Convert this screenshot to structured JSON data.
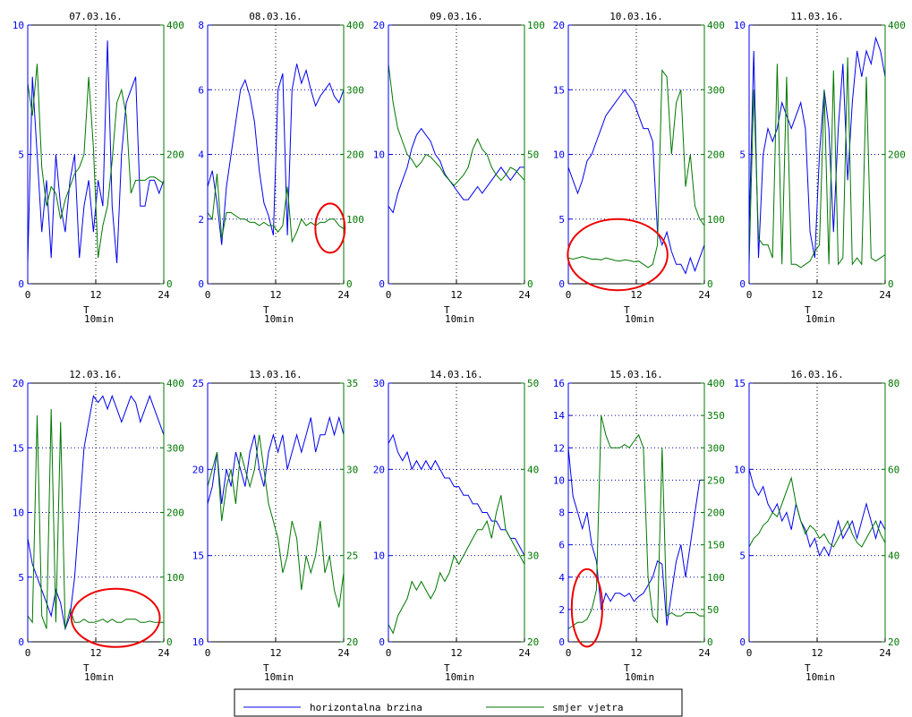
{
  "colors": {
    "speed": "#0000ee",
    "direction": "#007700",
    "grid": "#0000aa",
    "axis": "#000000",
    "highlight": "#ee0000"
  },
  "legend": {
    "speed_label": "horizontalna brzina",
    "direction_label": "smjer vjetra"
  },
  "chart_data": [
    {
      "type": "line",
      "title": "07.03.16.",
      "xlabel": "T",
      "xlabel_sub": "10min",
      "x_ticks": [
        "0",
        "12",
        "24"
      ],
      "left_ticks": [
        "0",
        "5",
        "10"
      ],
      "right_ticks": [
        "0",
        "200",
        "400"
      ],
      "left_ylim": [
        0,
        10
      ],
      "right_ylim": [
        0,
        400
      ],
      "grid": true,
      "highlight": null,
      "series": [
        {
          "axis": "left",
          "values": [
            0.8,
            8,
            5,
            2,
            4,
            1,
            5,
            3,
            2,
            4,
            5,
            1,
            3,
            4,
            2,
            4,
            3,
            9.4,
            3,
            0.8,
            5,
            7,
            7.5,
            8,
            3,
            3,
            4,
            4,
            3.5,
            4
          ]
        },
        {
          "axis": "right",
          "values": [
            310,
            260,
            340,
            180,
            120,
            150,
            140,
            100,
            130,
            150,
            170,
            180,
            200,
            320,
            210,
            40,
            90,
            120,
            190,
            280,
            300,
            260,
            140,
            160,
            160,
            160,
            165,
            165,
            160,
            155
          ]
        }
      ]
    },
    {
      "type": "line",
      "title": "08.03.16.",
      "xlabel": "T",
      "xlabel_sub": "10min",
      "x_ticks": [
        "0",
        "12",
        "24"
      ],
      "left_ticks": [
        "0",
        "2",
        "4",
        "6",
        "8"
      ],
      "right_ticks": [
        "0",
        "100",
        "200",
        "300",
        "400"
      ],
      "left_ylim": [
        0,
        8
      ],
      "right_ylim": [
        0,
        400
      ],
      "grid": true,
      "highlight": {
        "x": 21.6,
        "y": 86,
        "rx": 2.6,
        "ry": 38,
        "axis": "right"
      },
      "series": [
        {
          "axis": "left",
          "values": [
            3,
            3.5,
            2.5,
            1.2,
            3,
            4,
            5,
            6,
            6.3,
            5.8,
            5,
            3.5,
            2.5,
            2.1,
            1.5,
            6,
            6.5,
            1.5,
            6,
            6.8,
            6.2,
            6.6,
            6,
            5.5,
            5.8,
            6,
            6.2,
            5.8,
            5.6,
            6
          ]
        },
        {
          "axis": "right",
          "values": [
            110,
            100,
            170,
            70,
            110,
            110,
            105,
            100,
            100,
            95,
            95,
            90,
            95,
            90,
            90,
            80,
            90,
            150,
            65,
            80,
            100,
            90,
            95,
            90,
            95,
            95,
            100,
            100,
            90,
            85
          ]
        }
      ]
    },
    {
      "type": "line",
      "title": "09.03.16.",
      "xlabel": "T",
      "xlabel_sub": "10min",
      "x_ticks": [
        "0",
        "12",
        "24"
      ],
      "left_ticks": [
        "0",
        "10",
        "20"
      ],
      "right_ticks": [
        "0",
        "50",
        "100"
      ],
      "left_ylim": [
        0,
        20
      ],
      "right_ylim": [
        0,
        100
      ],
      "grid": true,
      "highlight": null,
      "series": [
        {
          "axis": "left",
          "values": [
            6,
            5.5,
            7,
            8,
            9,
            10.5,
            11.5,
            12,
            11.5,
            11,
            10,
            9.5,
            8.5,
            8,
            7.5,
            7,
            6.5,
            6.5,
            7,
            7.5,
            7,
            7.5,
            8,
            8.5,
            9,
            8.5,
            8,
            8.5,
            9,
            9
          ]
        },
        {
          "axis": "right",
          "values": [
            85,
            70,
            60,
            55,
            50,
            48,
            45,
            47,
            50,
            49,
            47,
            45,
            42,
            40,
            38,
            40,
            42,
            45,
            52,
            56,
            52,
            50,
            45,
            42,
            40,
            42,
            45,
            44,
            42,
            40
          ]
        }
      ]
    },
    {
      "type": "line",
      "title": "10.03.16.",
      "xlabel": "T",
      "xlabel_sub": "10min",
      "x_ticks": [
        "0",
        "12",
        "24"
      ],
      "left_ticks": [
        "0",
        "5",
        "10",
        "15",
        "20"
      ],
      "right_ticks": [
        "0",
        "100",
        "200",
        "300",
        "400"
      ],
      "left_ylim": [
        0,
        20
      ],
      "right_ylim": [
        0,
        400
      ],
      "grid": true,
      "highlight": {
        "x": 8.7,
        "y": 45,
        "rx": 8.8,
        "ry": 55,
        "axis": "right"
      },
      "series": [
        {
          "axis": "left",
          "values": [
            9,
            8,
            7,
            8,
            9.5,
            10,
            11,
            12,
            13,
            13.5,
            14,
            14.5,
            15,
            14.5,
            14,
            13,
            12,
            12,
            11,
            4,
            3,
            4,
            2.5,
            1.5,
            1.5,
            0.8,
            2,
            1,
            2,
            3
          ]
        },
        {
          "axis": "right",
          "values": [
            40,
            38,
            40,
            42,
            40,
            38,
            38,
            37,
            40,
            38,
            36,
            35,
            37,
            36,
            34,
            35,
            30,
            25,
            30,
            60,
            330,
            320,
            200,
            280,
            300,
            150,
            200,
            120,
            100,
            90
          ]
        }
      ]
    },
    {
      "type": "line",
      "title": "11.03.16.",
      "xlabel": "T",
      "xlabel_sub": "10min",
      "x_ticks": [
        "0",
        "12",
        "24"
      ],
      "left_ticks": [
        "0",
        "5",
        "10"
      ],
      "right_ticks": [
        "0",
        "200",
        "400"
      ],
      "left_ylim": [
        0,
        10
      ],
      "right_ylim": [
        0,
        400
      ],
      "grid": true,
      "highlight": null,
      "series": [
        {
          "axis": "left",
          "values": [
            2,
            9,
            1,
            5,
            6,
            5.5,
            6,
            7,
            6.5,
            6,
            6.5,
            7,
            6,
            2,
            1,
            5,
            7.5,
            6,
            2,
            6,
            8.5,
            4,
            7,
            9,
            8,
            9,
            8.5,
            9.5,
            9,
            8
          ]
        },
        {
          "axis": "right",
          "values": [
            30,
            300,
            70,
            60,
            60,
            40,
            340,
            30,
            320,
            30,
            30,
            25,
            30,
            35,
            50,
            60,
            300,
            30,
            330,
            30,
            40,
            350,
            30,
            40,
            30,
            320,
            40,
            35,
            40,
            45
          ]
        }
      ]
    },
    {
      "type": "line",
      "title": "12.03.16.",
      "xlabel": "T",
      "xlabel_sub": "10min",
      "x_ticks": [
        "0",
        "12",
        "24"
      ],
      "left_ticks": [
        "0",
        "5",
        "10",
        "15",
        "20"
      ],
      "right_ticks": [
        "0",
        "100",
        "200",
        "300",
        "400"
      ],
      "left_ylim": [
        0,
        20
      ],
      "right_ylim": [
        0,
        400
      ],
      "grid": true,
      "highlight": {
        "x": 15.5,
        "y": 37,
        "rx": 7.8,
        "ry": 45,
        "axis": "right"
      },
      "series": [
        {
          "axis": "left",
          "values": [
            8,
            6,
            5,
            4,
            3,
            2,
            4,
            3,
            1,
            2,
            5,
            10,
            15,
            17,
            19,
            18.5,
            19,
            18,
            19,
            18,
            17,
            18,
            19,
            18.5,
            17,
            18,
            19,
            18,
            17,
            16
          ]
        },
        {
          "axis": "right",
          "values": [
            40,
            30,
            350,
            40,
            20,
            360,
            30,
            340,
            20,
            50,
            30,
            30,
            35,
            30,
            30,
            32,
            35,
            30,
            35,
            30,
            30,
            35,
            35,
            35,
            30,
            30,
            32,
            30,
            30,
            30
          ]
        }
      ]
    },
    {
      "type": "line",
      "title": "13.03.16.",
      "xlabel": "T",
      "xlabel_sub": "10min",
      "x_ticks": [
        "0",
        "12",
        "24"
      ],
      "left_ticks": [
        "10",
        "15",
        "20",
        "25"
      ],
      "right_ticks": [
        "20",
        "25",
        "30",
        "35"
      ],
      "left_ylim": [
        10,
        25
      ],
      "right_ylim": [
        20,
        35
      ],
      "grid": true,
      "highlight": null,
      "series": [
        {
          "axis": "left",
          "values": [
            18,
            19,
            21,
            18,
            20,
            19,
            21,
            20,
            19,
            21,
            22,
            20,
            19,
            21,
            22,
            21,
            22,
            20,
            21,
            22,
            21,
            22,
            23,
            21,
            22,
            22,
            23,
            22,
            23,
            22
          ]
        },
        {
          "axis": "right",
          "values": [
            29,
            30,
            31,
            27,
            29,
            30,
            28,
            31,
            30,
            29,
            30,
            32,
            30,
            28,
            27,
            26,
            24,
            25,
            27,
            26,
            23,
            25,
            24,
            25,
            27,
            24,
            25,
            23,
            22,
            24
          ]
        }
      ]
    },
    {
      "type": "line",
      "title": "14.03.16.",
      "xlabel": "T",
      "xlabel_sub": "10min",
      "x_ticks": [
        "0",
        "12",
        "24"
      ],
      "left_ticks": [
        "0",
        "10",
        "20",
        "30"
      ],
      "right_ticks": [
        "20",
        "30",
        "40",
        "50"
      ],
      "left_ylim": [
        0,
        30
      ],
      "right_ylim": [
        20,
        50
      ],
      "grid": true,
      "highlight": null,
      "series": [
        {
          "axis": "left",
          "values": [
            23,
            24,
            22,
            21,
            22,
            20,
            21,
            20,
            21,
            20,
            21,
            20,
            19,
            19,
            18,
            18,
            17,
            17,
            16,
            16,
            15,
            15,
            14,
            14,
            13,
            13,
            12,
            12,
            11,
            10
          ]
        },
        {
          "axis": "right",
          "values": [
            22,
            21,
            23,
            24,
            25,
            27,
            26,
            27,
            26,
            25,
            26,
            28,
            27,
            28,
            30,
            29,
            30,
            31,
            32,
            33,
            33,
            34,
            32,
            35,
            37,
            33,
            32,
            31,
            30,
            29
          ]
        }
      ]
    },
    {
      "type": "line",
      "title": "15.03.16.",
      "xlabel": "T",
      "xlabel_sub": "10min",
      "x_ticks": [
        "0",
        "12",
        "24"
      ],
      "left_ticks": [
        "0",
        "2",
        "4",
        "6",
        "8",
        "10",
        "12",
        "14",
        "16"
      ],
      "right_ticks": [
        "0",
        "50",
        "100",
        "150",
        "200",
        "250",
        "300",
        "350",
        "400"
      ],
      "left_ylim": [
        0,
        16
      ],
      "right_ylim": [
        0,
        400
      ],
      "grid": true,
      "highlight": {
        "x": 3.3,
        "y": 2.1,
        "rx": 2.7,
        "ry": 2.4,
        "axis": "left"
      },
      "series": [
        {
          "axis": "left",
          "values": [
            12,
            9,
            8,
            7,
            8,
            6,
            5,
            2,
            3,
            2.5,
            3,
            3,
            2.8,
            3,
            2.5,
            2.8,
            3,
            3.5,
            4,
            5,
            4.8,
            1,
            3,
            5,
            6,
            4,
            6,
            8,
            10,
            10
          ]
        },
        {
          "axis": "right",
          "values": [
            20,
            25,
            30,
            30,
            35,
            50,
            80,
            350,
            320,
            300,
            300,
            300,
            305,
            300,
            310,
            320,
            300,
            100,
            40,
            30,
            300,
            40,
            45,
            40,
            40,
            45,
            45,
            45,
            40,
            40
          ]
        }
      ]
    },
    {
      "type": "line",
      "title": "16.03.16.",
      "xlabel": "T",
      "xlabel_sub": "10min",
      "x_ticks": [
        "0",
        "12",
        "24"
      ],
      "left_ticks": [
        "0",
        "5",
        "10",
        "15"
      ],
      "right_ticks": [
        "20",
        "40",
        "60",
        "80"
      ],
      "left_ylim": [
        0,
        15
      ],
      "right_ylim": [
        20,
        80
      ],
      "grid": true,
      "highlight": null,
      "series": [
        {
          "axis": "left",
          "values": [
            10,
            9,
            8.5,
            9,
            8,
            7.5,
            8,
            7,
            7.5,
            6.5,
            8,
            7,
            6.5,
            5.5,
            6,
            5,
            5.5,
            5,
            6,
            7,
            6,
            6.5,
            7,
            6,
            7,
            8,
            7,
            6,
            7,
            6.5
          ]
        },
        {
          "axis": "right",
          "values": [
            42,
            44,
            45,
            47,
            48,
            50,
            49,
            52,
            55,
            58,
            52,
            48,
            45,
            47,
            46,
            44,
            45,
            43,
            42,
            44,
            46,
            48,
            45,
            43,
            42,
            44,
            46,
            48,
            45,
            43
          ]
        }
      ]
    }
  ]
}
